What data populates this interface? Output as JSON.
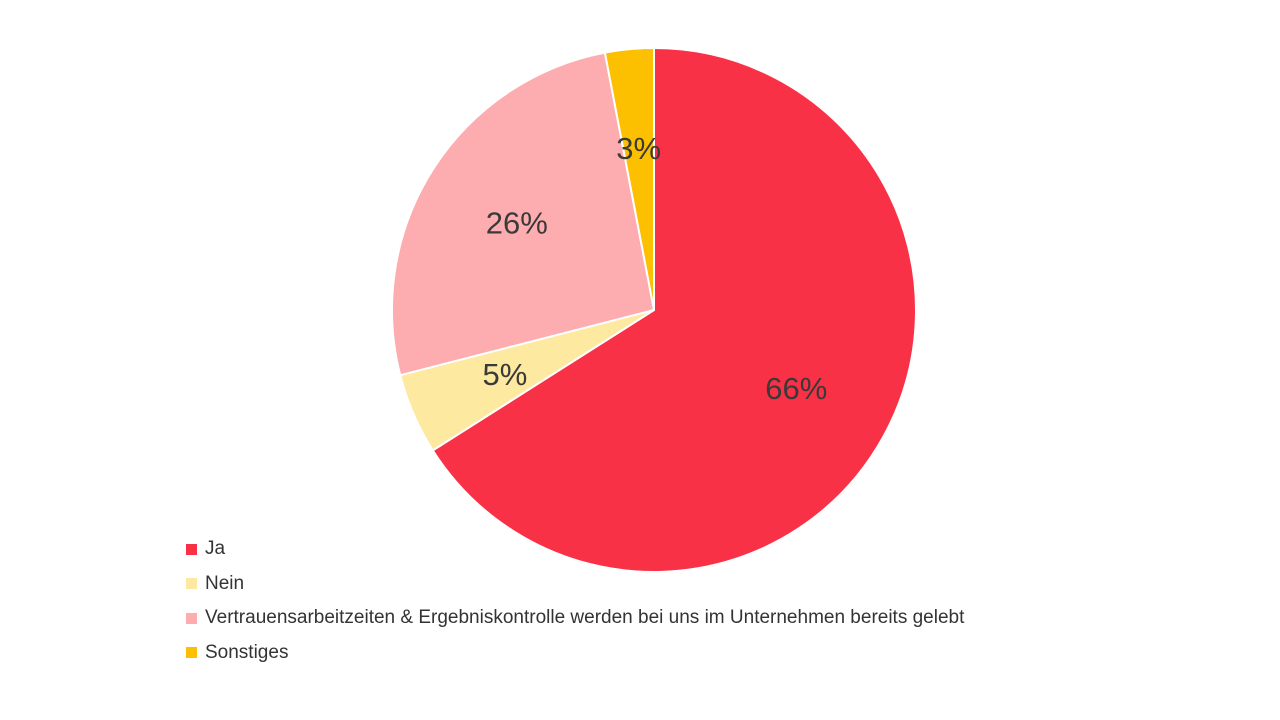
{
  "chart_data": {
    "type": "pie",
    "title": "",
    "slices": [
      {
        "label": "Ja",
        "value": 66,
        "value_label": "66%",
        "color": "#f93146"
      },
      {
        "label": "Nein",
        "value": 5,
        "value_label": "5%",
        "color": "#fde9a0"
      },
      {
        "label": "Vertrauensarbeitzeiten & Ergebniskontrolle werden bei uns im Unternehmen bereits gelebt",
        "value": 26,
        "value_label": "26%",
        "color": "#fdacaf"
      },
      {
        "label": "Sonstiges",
        "value": 3,
        "value_label": "3%",
        "color": "#fcc000"
      }
    ],
    "start_angle": "12 o'clock",
    "direction": "clockwise",
    "legend_position": "bottom-left"
  }
}
